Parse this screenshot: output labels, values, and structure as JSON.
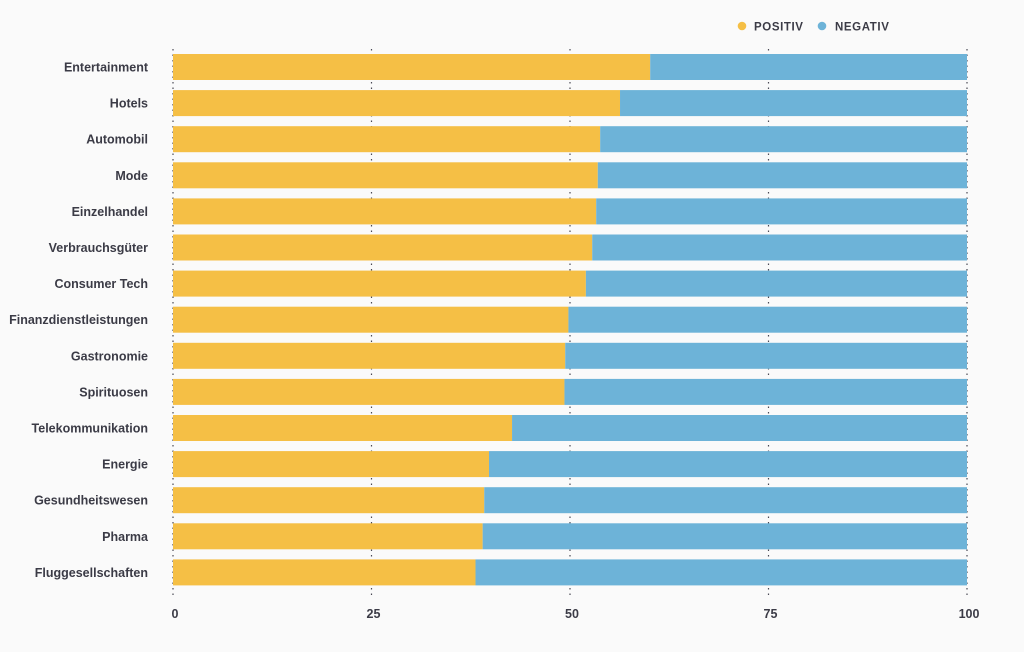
{
  "chart_data": {
    "type": "bar",
    "orientation": "horizontal",
    "stacked": true,
    "title": "",
    "xlabel": "",
    "ylabel": "",
    "xlim": [
      0,
      100
    ],
    "xticks": [
      0,
      25,
      50,
      75,
      100
    ],
    "grid": true,
    "legend_position": "top-right",
    "categories": [
      "Entertainment",
      "Hotels",
      "Automobil",
      "Mode",
      "Einzelhandel",
      "Verbrauchsgüter",
      "Consumer Tech",
      "Finanzdienstleistungen",
      "Gastronomie",
      "Spirituosen",
      "Telekommunikation",
      "Energie",
      "Gesundheitswesen",
      "Pharma",
      "Fluggesellschaften"
    ],
    "series": [
      {
        "name": "POSITIV",
        "color": "#f5bf45",
        "values": [
          60.1,
          56.3,
          53.8,
          53.5,
          53.3,
          52.8,
          52.0,
          49.8,
          49.4,
          49.3,
          42.7,
          39.8,
          39.2,
          39.0,
          38.1
        ]
      },
      {
        "name": "NEGATIV",
        "color": "#6db3d8",
        "values": [
          39.9,
          43.7,
          46.2,
          46.5,
          46.7,
          47.2,
          48.0,
          50.2,
          50.6,
          50.7,
          57.3,
          60.2,
          60.8,
          61.0,
          61.9
        ]
      }
    ]
  }
}
